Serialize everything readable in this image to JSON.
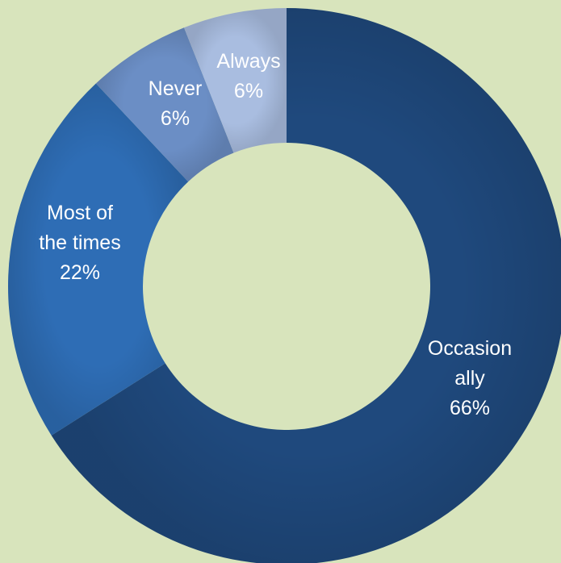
{
  "chart_data": {
    "type": "donut",
    "title": "",
    "categories": [
      "Occasionally",
      "Most of the times",
      "Never",
      "Always"
    ],
    "values": [
      66,
      22,
      6,
      6
    ],
    "unit": "%",
    "labels": [
      {
        "lines": [
          "Occasion",
          "ally",
          "66%"
        ]
      },
      {
        "lines": [
          "Most of",
          "the times",
          "22%"
        ]
      },
      {
        "lines": [
          "Never",
          "6%"
        ]
      },
      {
        "lines": [
          "Always",
          "6%"
        ]
      }
    ],
    "colors": [
      "#1f497d",
      "#2e6db5",
      "#6b8ec5",
      "#a9bde0"
    ],
    "legend": "none",
    "grid": false
  }
}
